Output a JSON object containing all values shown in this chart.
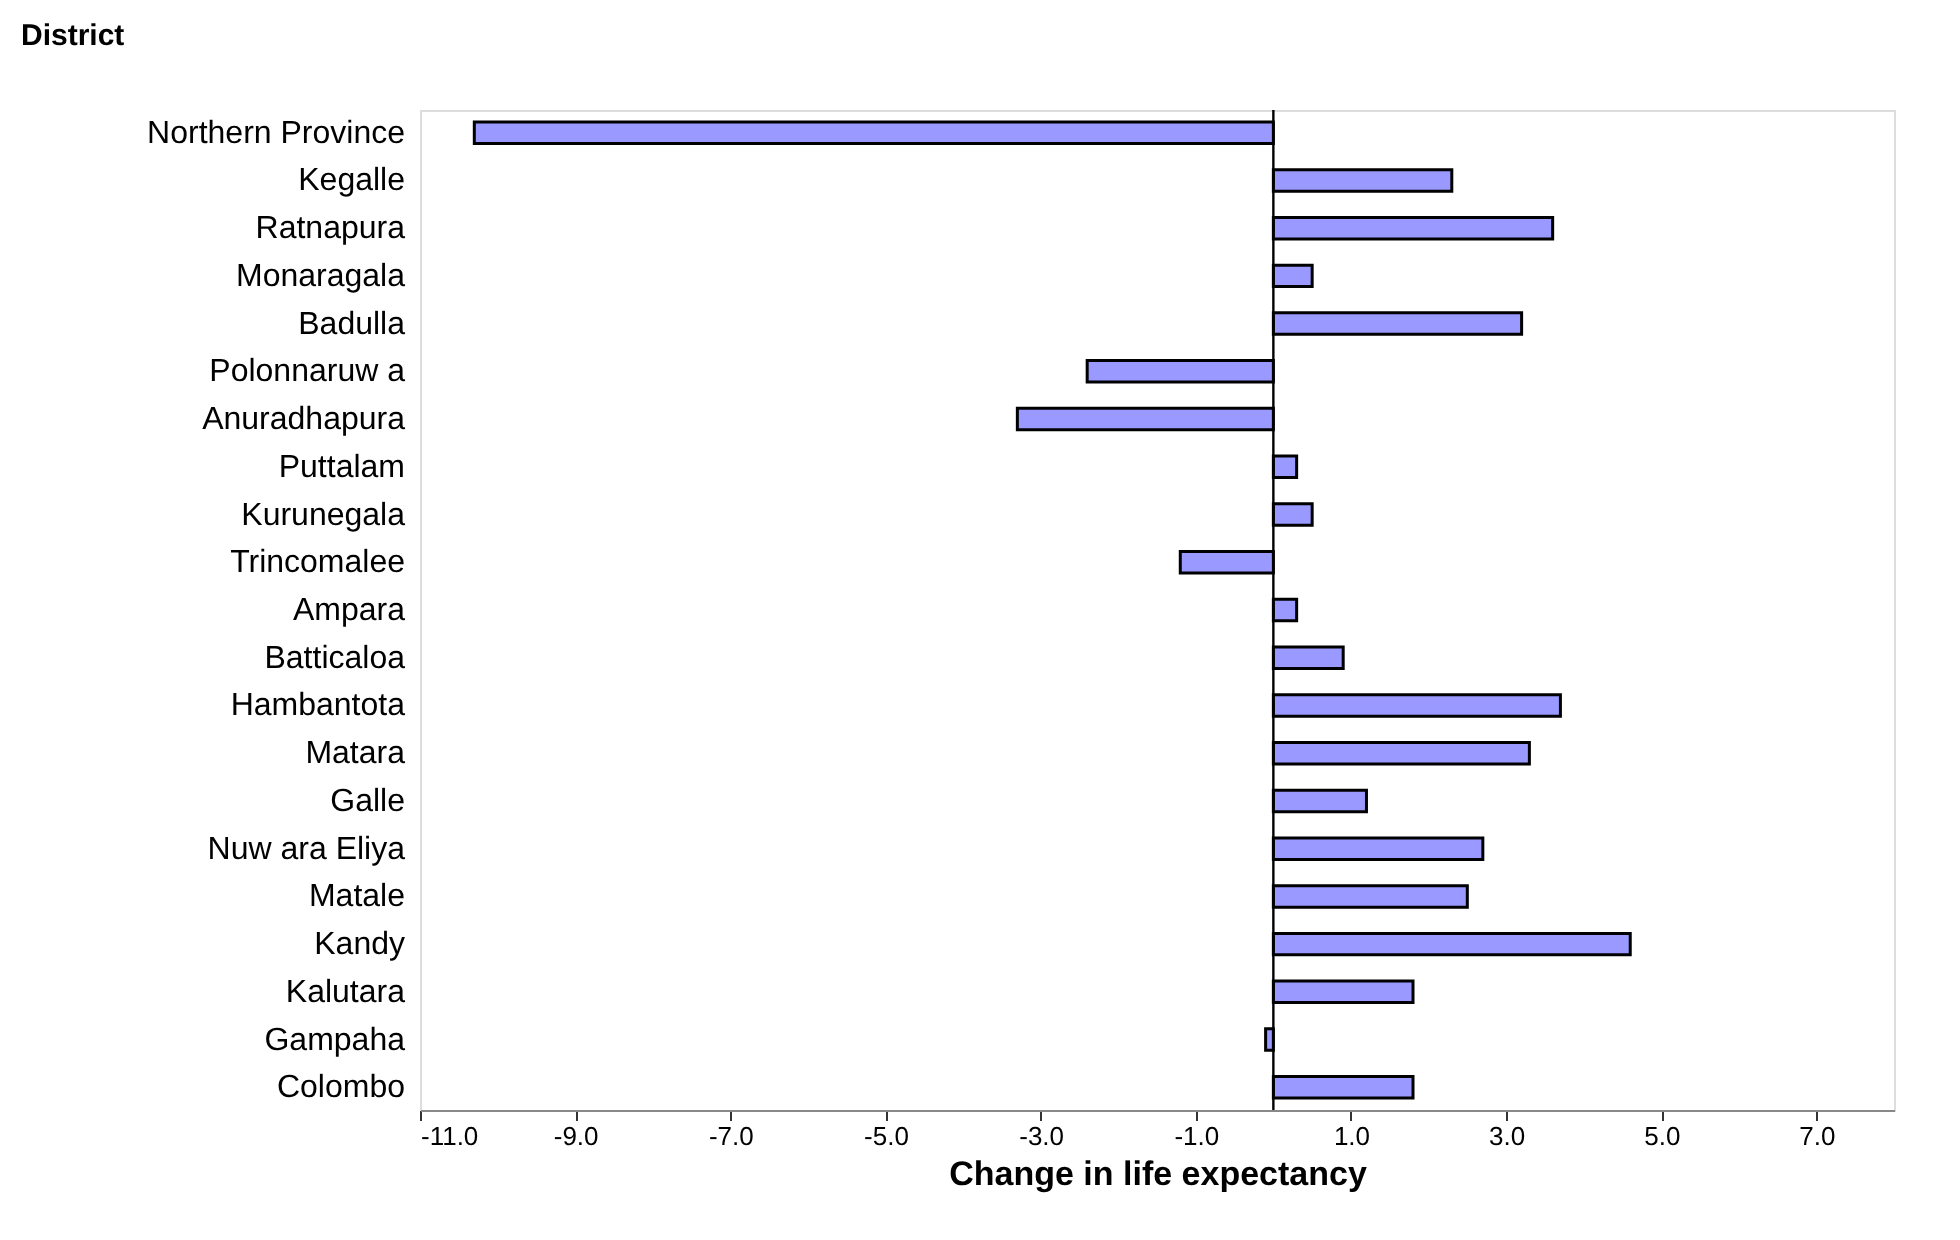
{
  "chart_data": {
    "type": "bar",
    "orientation": "horizontal",
    "xlabel": "Change in life expectancy",
    "ylabel": "District",
    "categories": [
      "Northern Province",
      "Kegalle",
      "Ratnapura",
      "Monaragala",
      "Badulla",
      "Polonnaruw a",
      "Anuradhapura",
      "Puttalam",
      "Kurunegala",
      "Trincomalee",
      "Ampara",
      "Batticaloa",
      "Hambantota",
      "Matara",
      "Galle",
      "Nuw ara Eliya",
      "Matale",
      "Kandy",
      "Kalutara",
      "Gampaha",
      "Colombo"
    ],
    "values": [
      -10.3,
      2.3,
      3.6,
      0.5,
      3.2,
      -2.4,
      -3.3,
      0.3,
      0.5,
      -1.2,
      0.3,
      0.9,
      3.7,
      3.3,
      1.2,
      2.7,
      2.5,
      4.6,
      1.8,
      -0.1,
      1.8
    ],
    "color": "#9999ff",
    "xlim": [
      -11,
      8
    ],
    "xticks": [
      {
        "value": -11,
        "label": "-11.0"
      },
      {
        "value": -9,
        "label": "-9.0"
      },
      {
        "value": -7,
        "label": "-7.0"
      },
      {
        "value": -5,
        "label": "-5.0"
      },
      {
        "value": -3,
        "label": "-3.0"
      },
      {
        "value": -1,
        "label": "-1.0"
      },
      {
        "value": 1,
        "label": "1.0"
      },
      {
        "value": 3,
        "label": "3.0"
      },
      {
        "value": 5,
        "label": "5.0"
      },
      {
        "value": 7,
        "label": "7.0"
      }
    ],
    "grid": false
  }
}
